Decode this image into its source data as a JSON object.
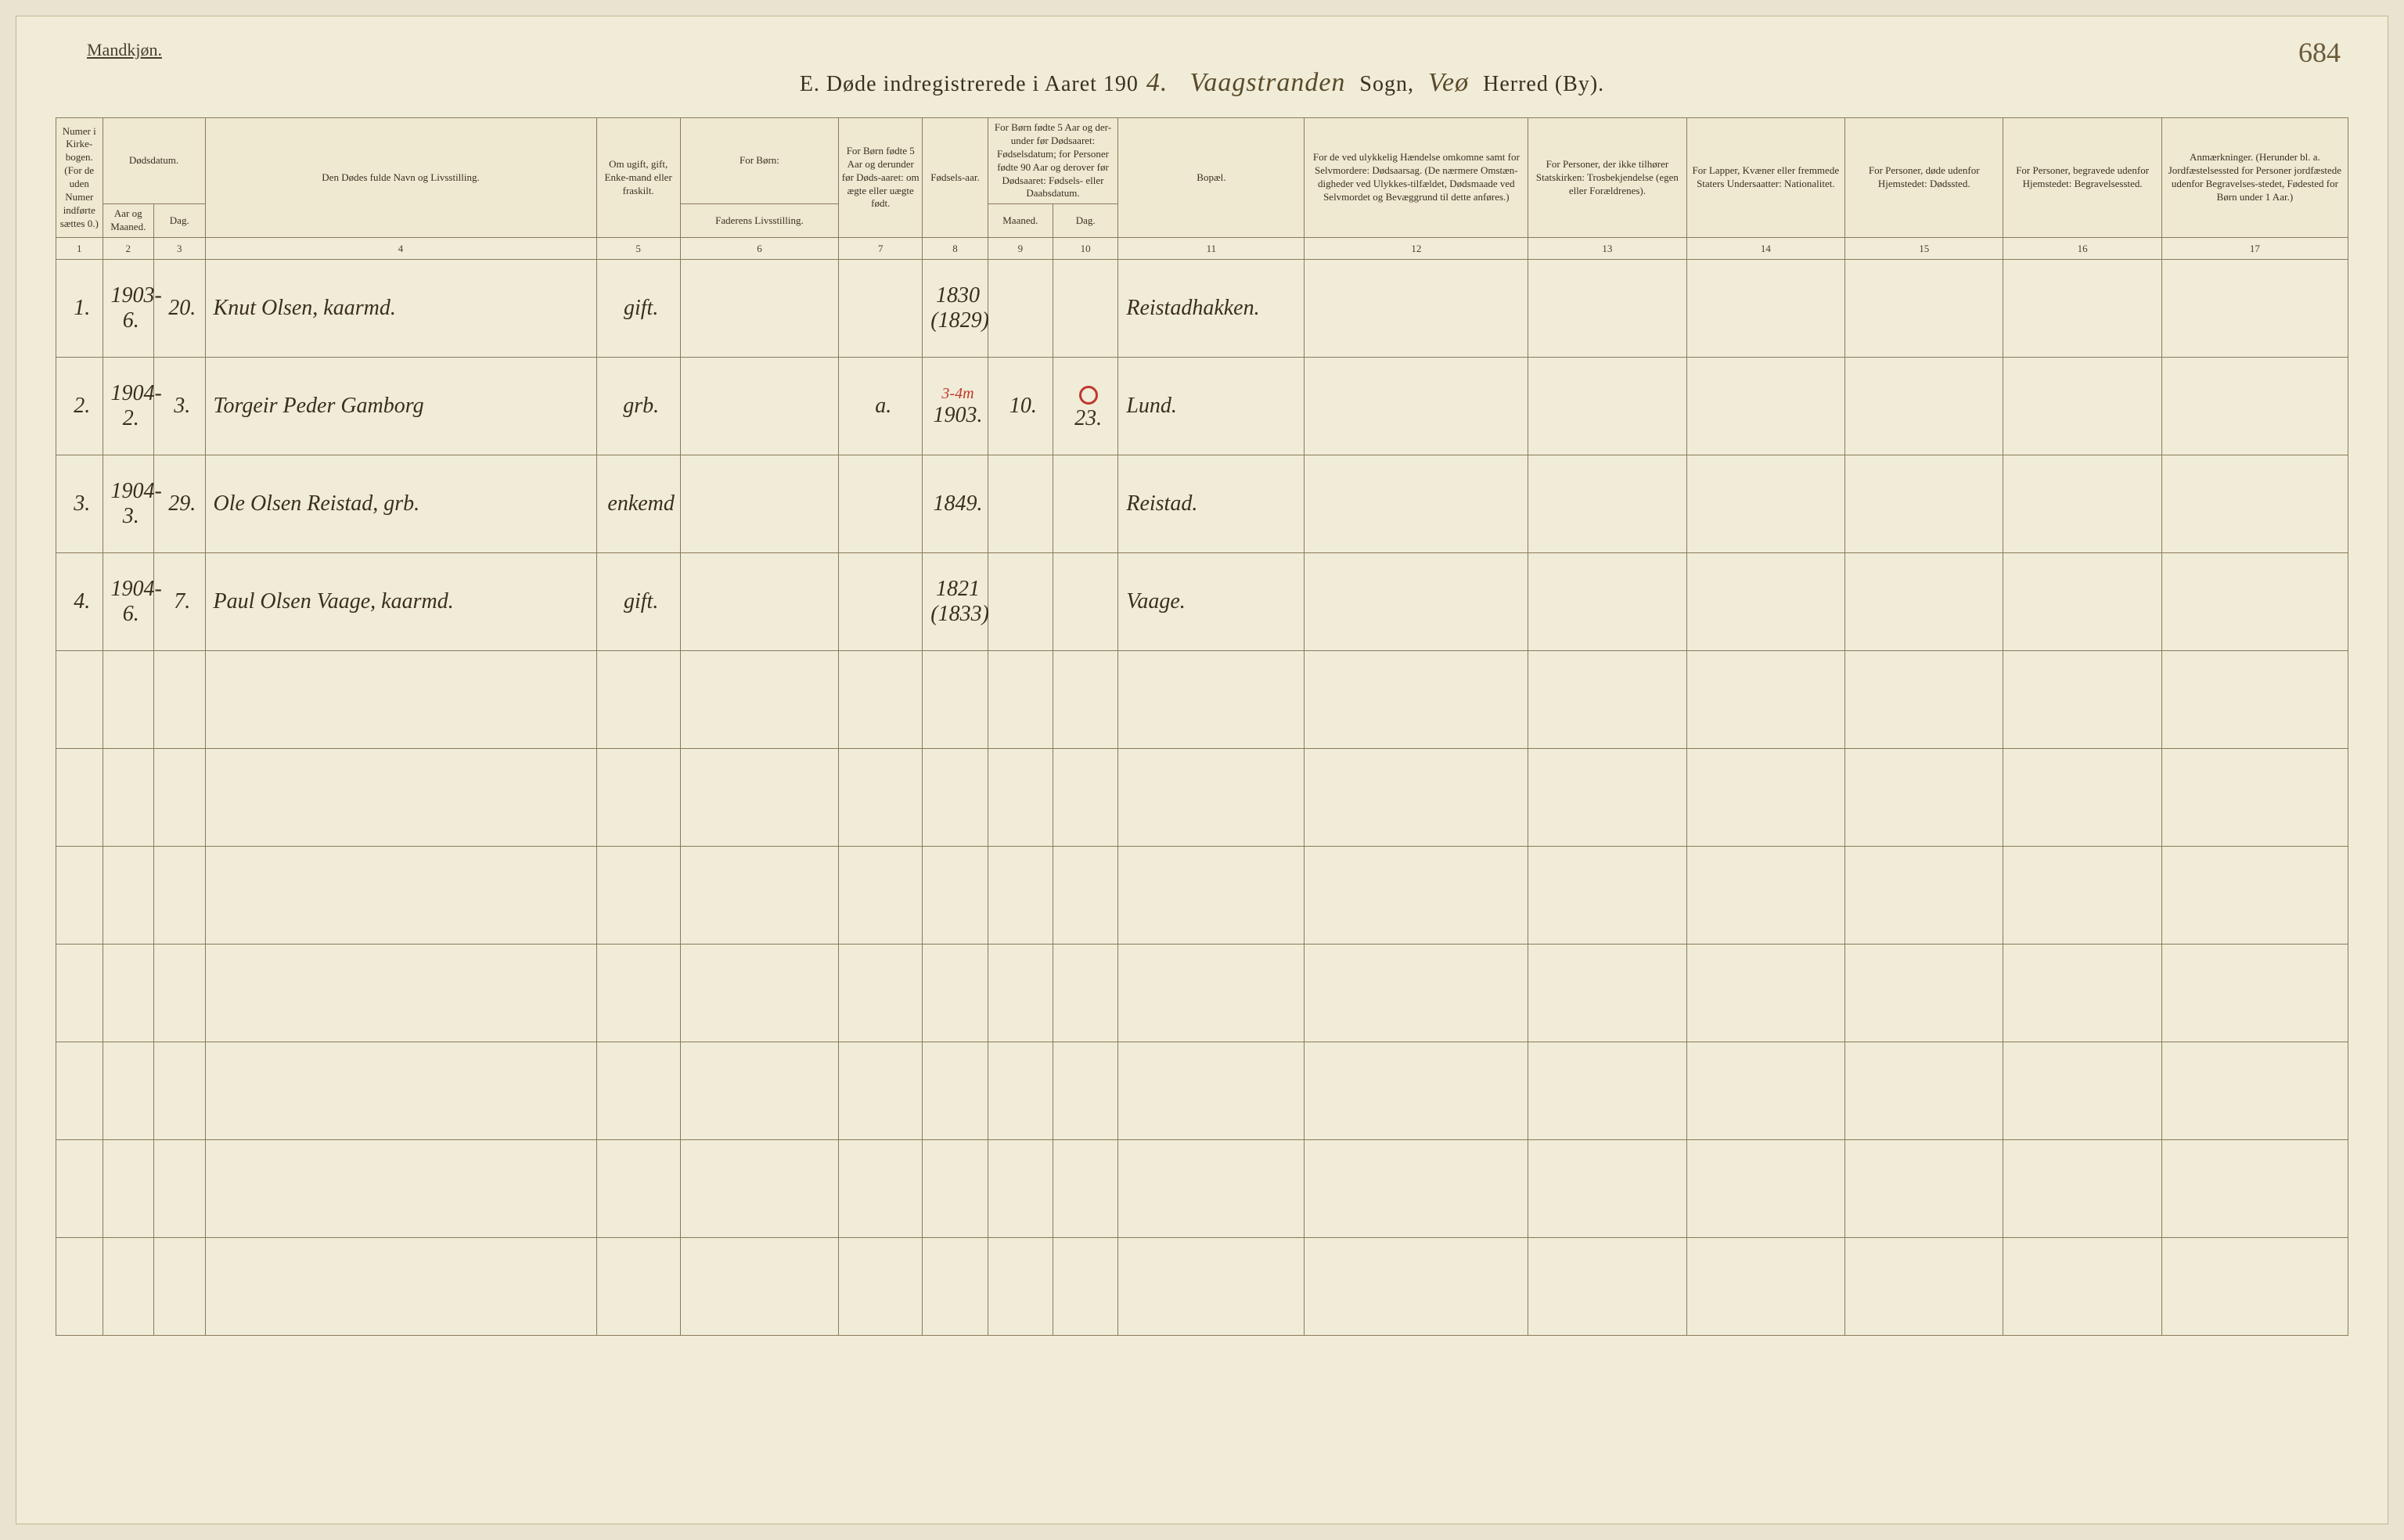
{
  "page_number": "684",
  "top_label": "Mandkjøn.",
  "title": {
    "prefix": "E.   Døde indregistrerede i Aaret 190",
    "year_suffix": "4.",
    "sogn_value": "Vaagstranden",
    "sogn_label": "Sogn,",
    "herred_value": "Veø",
    "herred_label": "Herred (By)."
  },
  "headers": {
    "c1": "Numer i Kirke-bogen. (For de uden Numer indførte sættes 0.)",
    "c2_top": "Dødsdatum.",
    "c2": "Aar og Maaned.",
    "c3": "Dag.",
    "c4": "Den Dødes fulde Navn og Livsstilling.",
    "c5": "Om ugift, gift, Enke-mand eller fraskilt.",
    "c6_top": "For Børn:",
    "c6": "Faderens Livsstilling.",
    "c7": "For Børn fødte 5 Aar og derunder før Døds-aaret: om ægte eller uægte født.",
    "c8": "Fødsels-aar.",
    "c9_10_top": "For Børn fødte 5 Aar og der-under før Dødsaaret: Fødselsdatum; for Personer fødte 90 Aar og derover før Dødsaaret: Fødsels- eller Daabsdatum.",
    "c9": "Maaned.",
    "c10": "Dag.",
    "c11": "Bopæl.",
    "c12": "For de ved ulykkelig Hændelse omkomne samt for Selvmordere: Dødsaarsag. (De nærmere Omstæn-digheder ved Ulykkes-tilfældet, Dødsmaade ved Selvmordet og Bevæggrund til dette anføres.)",
    "c13": "For Personer, der ikke tilhører Statskirken: Trosbekjendelse (egen eller Forældrenes).",
    "c14": "For Lapper, Kvæner eller fremmede Staters Undersaatter: Nationalitet.",
    "c15": "For Personer, døde udenfor Hjemstedet: Dødssted.",
    "c16": "For Personer, begravede udenfor Hjemstedet: Begravelsessted.",
    "c17": "Anmærkninger. (Herunder bl. a. Jordfæstelsessted for Personer jordfæstede udenfor Begravelses-stedet, Fødested for Børn under 1 Aar.)"
  },
  "colnums": [
    "1",
    "2",
    "3",
    "4",
    "5",
    "6",
    "7",
    "8",
    "9",
    "10",
    "11",
    "12",
    "13",
    "14",
    "15",
    "16",
    "17"
  ],
  "rows": [
    {
      "num": "1.",
      "aar": "1903-6.",
      "dag": "20.",
      "navn": "Knut Olsen, kaarmd.",
      "status": "gift.",
      "faderen": "",
      "aegte": "",
      "faar": "1830 (1829)",
      "fmnd": "",
      "fdag": "",
      "bopael": "Reistadhakken.",
      "annot": ""
    },
    {
      "num": "2.",
      "aar": "1904-2.",
      "dag": "3.",
      "navn": "Torgeir Peder Gamborg",
      "status": "grb.",
      "faderen": "",
      "aegte": "a.",
      "faar": "1903.",
      "fmnd": "10.",
      "fdag": "23.",
      "bopael": "Lund.",
      "annot": "3-4m"
    },
    {
      "num": "3.",
      "aar": "1904-3.",
      "dag": "29.",
      "navn": "Ole Olsen Reistad, grb.",
      "status": "enkemd",
      "faderen": "",
      "aegte": "",
      "faar": "1849.",
      "fmnd": "",
      "fdag": "",
      "bopael": "Reistad.",
      "annot": ""
    },
    {
      "num": "4.",
      "aar": "1904-6.",
      "dag": "7.",
      "navn": "Paul Olsen Vaage, kaarmd.",
      "status": "gift.",
      "faderen": "",
      "aegte": "",
      "faar": "1821 (1833)",
      "fmnd": "",
      "fdag": "",
      "bopael": "Vaage.",
      "annot": ""
    }
  ],
  "empty_rows": 7,
  "colors": {
    "paper": "#f0ecd8",
    "border": "#8a7a5a",
    "text": "#3a3020",
    "cursive": "#3a2f1a",
    "red": "#c0392b"
  }
}
